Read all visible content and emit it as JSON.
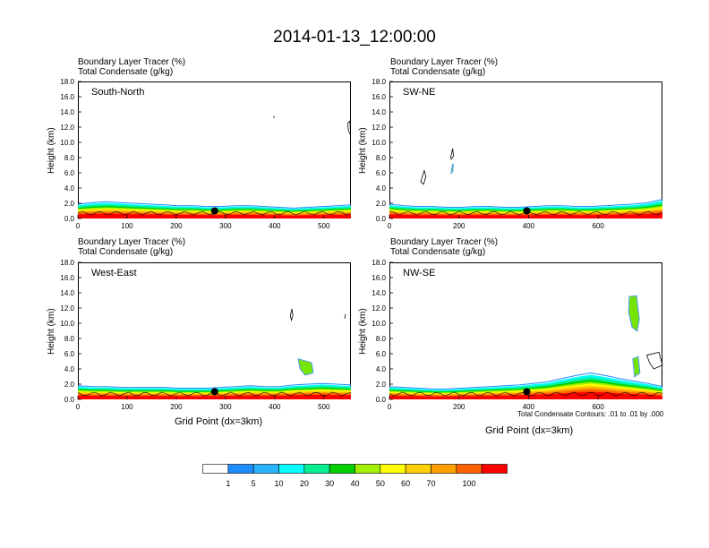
{
  "figure": {
    "title": "2014-01-13_12:00:00",
    "header_line1": "Boundary Layer Tracer    (%)",
    "header_line2": "Total Condensate   (g/kg)",
    "ylabel": "Height (km)",
    "xlabel": "Grid Point (dx=3km)",
    "contour_note": "Total Condensate Contours: .01 to .01 by .000"
  },
  "colorbar": {
    "colors": [
      "#ffffff",
      "#1e8cff",
      "#2ab4ff",
      "#00ffff",
      "#00f090",
      "#00d000",
      "#a0f000",
      "#ffff00",
      "#ffd000",
      "#ffa000",
      "#ff6000",
      "#ff0000"
    ],
    "labels": [
      "1",
      "5",
      "10",
      "20",
      "30",
      "40",
      "50",
      "60",
      "70",
      "100"
    ]
  },
  "chart_data": [
    {
      "type": "area",
      "panel": "South-North",
      "xlim": [
        0,
        555
      ],
      "ylim": [
        0,
        18
      ],
      "xticks": [
        0,
        100,
        200,
        300,
        400,
        500
      ],
      "yticks": [
        "0.0",
        "2.0",
        "4.0",
        "6.0",
        "8.0",
        "10.0",
        "12.0",
        "14.0",
        "16.0",
        "18.0"
      ],
      "pbl_top_km": [
        1.8,
        2.0,
        2.1,
        2.0,
        1.9,
        1.8,
        1.7,
        1.6,
        1.6,
        1.5,
        1.5,
        1.6,
        1.6,
        1.5,
        1.4,
        1.3,
        1.4,
        1.5,
        1.6,
        1.7
      ],
      "marker": {
        "x": 278,
        "y_km": 1.0
      },
      "features": [
        {
          "type": "contour",
          "x": [
            398,
            399
          ],
          "y_km": [
            13.2,
            13.5
          ]
        },
        {
          "type": "contour",
          "x": [
            548,
            553,
            554,
            550
          ],
          "y_km": [
            12.5,
            12.8,
            11.0,
            11.5
          ]
        }
      ]
    },
    {
      "type": "area",
      "panel": "SW-NE",
      "xlim": [
        0,
        785
      ],
      "ylim": [
        0,
        18
      ],
      "xticks": [
        0,
        200,
        400,
        600
      ],
      "yticks": [
        "0.0",
        "2.0",
        "4.0",
        "6.0",
        "8.0",
        "10.0",
        "12.0",
        "14.0",
        "16.0",
        "18.0"
      ],
      "pbl_top_km": [
        1.8,
        1.6,
        1.5,
        1.5,
        1.4,
        1.4,
        1.5,
        1.5,
        1.4,
        1.4,
        1.5,
        1.6,
        1.6,
        1.5,
        1.5,
        1.6,
        1.7,
        1.8,
        2.0,
        2.4
      ],
      "marker": {
        "x": 395,
        "y_km": 1.0
      },
      "features": [
        {
          "type": "contour",
          "x": [
            90,
            100,
            105,
            98
          ],
          "y_km": [
            4.8,
            6.3,
            5.5,
            4.5
          ]
        },
        {
          "type": "contour",
          "x": [
            176,
            182,
            184,
            178
          ],
          "y_km": [
            8.0,
            9.2,
            8.2,
            7.8
          ]
        },
        {
          "type": "fill",
          "x": [
            179,
            183,
            182,
            178
          ],
          "y_km": [
            6.5,
            7.2,
            6.2,
            6.0
          ]
        }
      ]
    },
    {
      "type": "area",
      "panel": "West-East",
      "xlim": [
        0,
        555
      ],
      "ylim": [
        0,
        18
      ],
      "xticks": [
        0,
        100,
        200,
        300,
        400,
        500
      ],
      "yticks": [
        "0.0",
        "2.0",
        "4.0",
        "6.0",
        "8.0",
        "10.0",
        "12.0",
        "14.0",
        "16.0",
        "18.0"
      ],
      "pbl_top_km": [
        1.7,
        1.6,
        1.6,
        1.5,
        1.5,
        1.5,
        1.5,
        1.4,
        1.4,
        1.4,
        1.5,
        1.6,
        1.7,
        1.6,
        1.6,
        1.8,
        1.9,
        2.0,
        1.9,
        1.8
      ],
      "marker": {
        "x": 278,
        "y_km": 1.0
      },
      "features": [
        {
          "type": "contour",
          "x": [
            432,
            435,
            437,
            434
          ],
          "y_km": [
            11.0,
            11.9,
            11.0,
            10.4
          ]
        },
        {
          "type": "contour",
          "x": [
            542,
            544
          ],
          "y_km": [
            10.6,
            11.2
          ]
        },
        {
          "type": "fill",
          "x": [
            448,
            475,
            478,
            462,
            452
          ],
          "y_km": [
            5.3,
            4.8,
            3.5,
            3.2,
            4.0
          ]
        }
      ]
    },
    {
      "type": "area",
      "panel": "NW-SE",
      "xlim": [
        0,
        785
      ],
      "ylim": [
        0,
        18
      ],
      "xticks": [
        0,
        200,
        400,
        600
      ],
      "yticks": [
        "0.0",
        "2.0",
        "4.0",
        "6.0",
        "8.0",
        "10.0",
        "12.0",
        "14.0",
        "16.0",
        "18.0"
      ],
      "pbl_top_km": [
        1.6,
        1.5,
        1.4,
        1.3,
        1.3,
        1.4,
        1.5,
        1.6,
        1.7,
        1.8,
        2.0,
        2.2,
        2.6,
        3.0,
        3.3,
        3.0,
        2.6,
        2.3,
        2.0,
        1.6
      ],
      "marker": {
        "x": 395,
        "y_km": 1.0
      },
      "features": [
        {
          "type": "fill",
          "x": [
            690,
            710,
            718,
            712,
            698,
            688
          ],
          "y_km": [
            13.5,
            13.6,
            10.5,
            9.0,
            9.5,
            11.5
          ]
        },
        {
          "type": "contour",
          "x": [
            740,
            775,
            785,
            760,
            748
          ],
          "y_km": [
            5.8,
            6.2,
            4.5,
            4.0,
            4.8
          ]
        },
        {
          "type": "fill",
          "x": [
            700,
            715,
            720,
            705
          ],
          "y_km": [
            5.3,
            5.6,
            3.5,
            3.0
          ]
        }
      ]
    }
  ]
}
